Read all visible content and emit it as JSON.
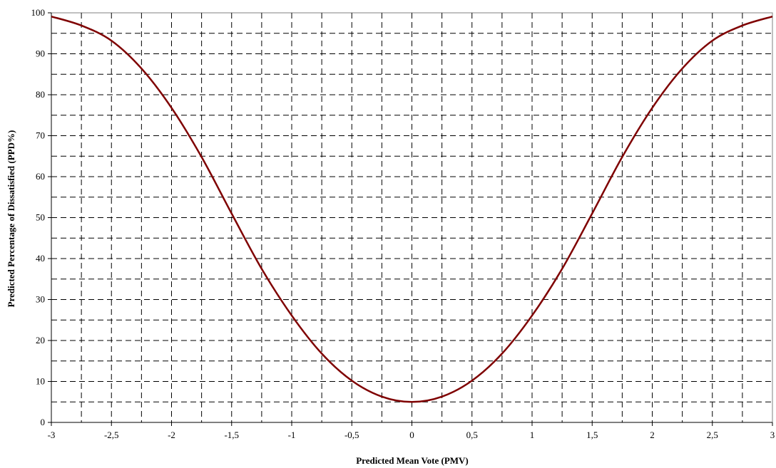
{
  "chart_data": {
    "type": "line",
    "title": "",
    "xlabel": "Predicted Mean Vote (PMV)",
    "ylabel": "Predicted Percentage of Dissatisfied (PPD%)",
    "xlim": [
      -3,
      3
    ],
    "ylim": [
      0,
      100
    ],
    "x_tick_labels": [
      "-3",
      "-2,5",
      "-2",
      "-1,5",
      "-1",
      "-0,5",
      "0",
      "0,5",
      "1",
      "1,5",
      "2",
      "2,5",
      "3"
    ],
    "y_tick_labels": [
      "0",
      "10",
      "20",
      "30",
      "40",
      "50",
      "60",
      "70",
      "80",
      "90",
      "100"
    ],
    "grid": true,
    "grid_style": "dashed",
    "legend": "none",
    "series": [
      {
        "color": "#7f0000",
        "x": [
          -3,
          -2.75,
          -2.5,
          -2.25,
          -2,
          -1.75,
          -1.5,
          -1.25,
          -1,
          -0.75,
          -0.5,
          -0.25,
          0,
          0.25,
          0.5,
          0.75,
          1,
          1.25,
          1.5,
          1.75,
          2,
          2.25,
          2.5,
          2.75,
          3
        ],
        "y": [
          99.1,
          96.9,
          93.2,
          86.4,
          76.8,
          64.8,
          51.0,
          37.5,
          26.1,
          16.8,
          10.2,
          6.3,
          5.0,
          6.3,
          10.2,
          16.8,
          26.1,
          37.5,
          51.0,
          64.8,
          76.8,
          86.4,
          93.2,
          96.9,
          99.1
        ]
      }
    ]
  }
}
